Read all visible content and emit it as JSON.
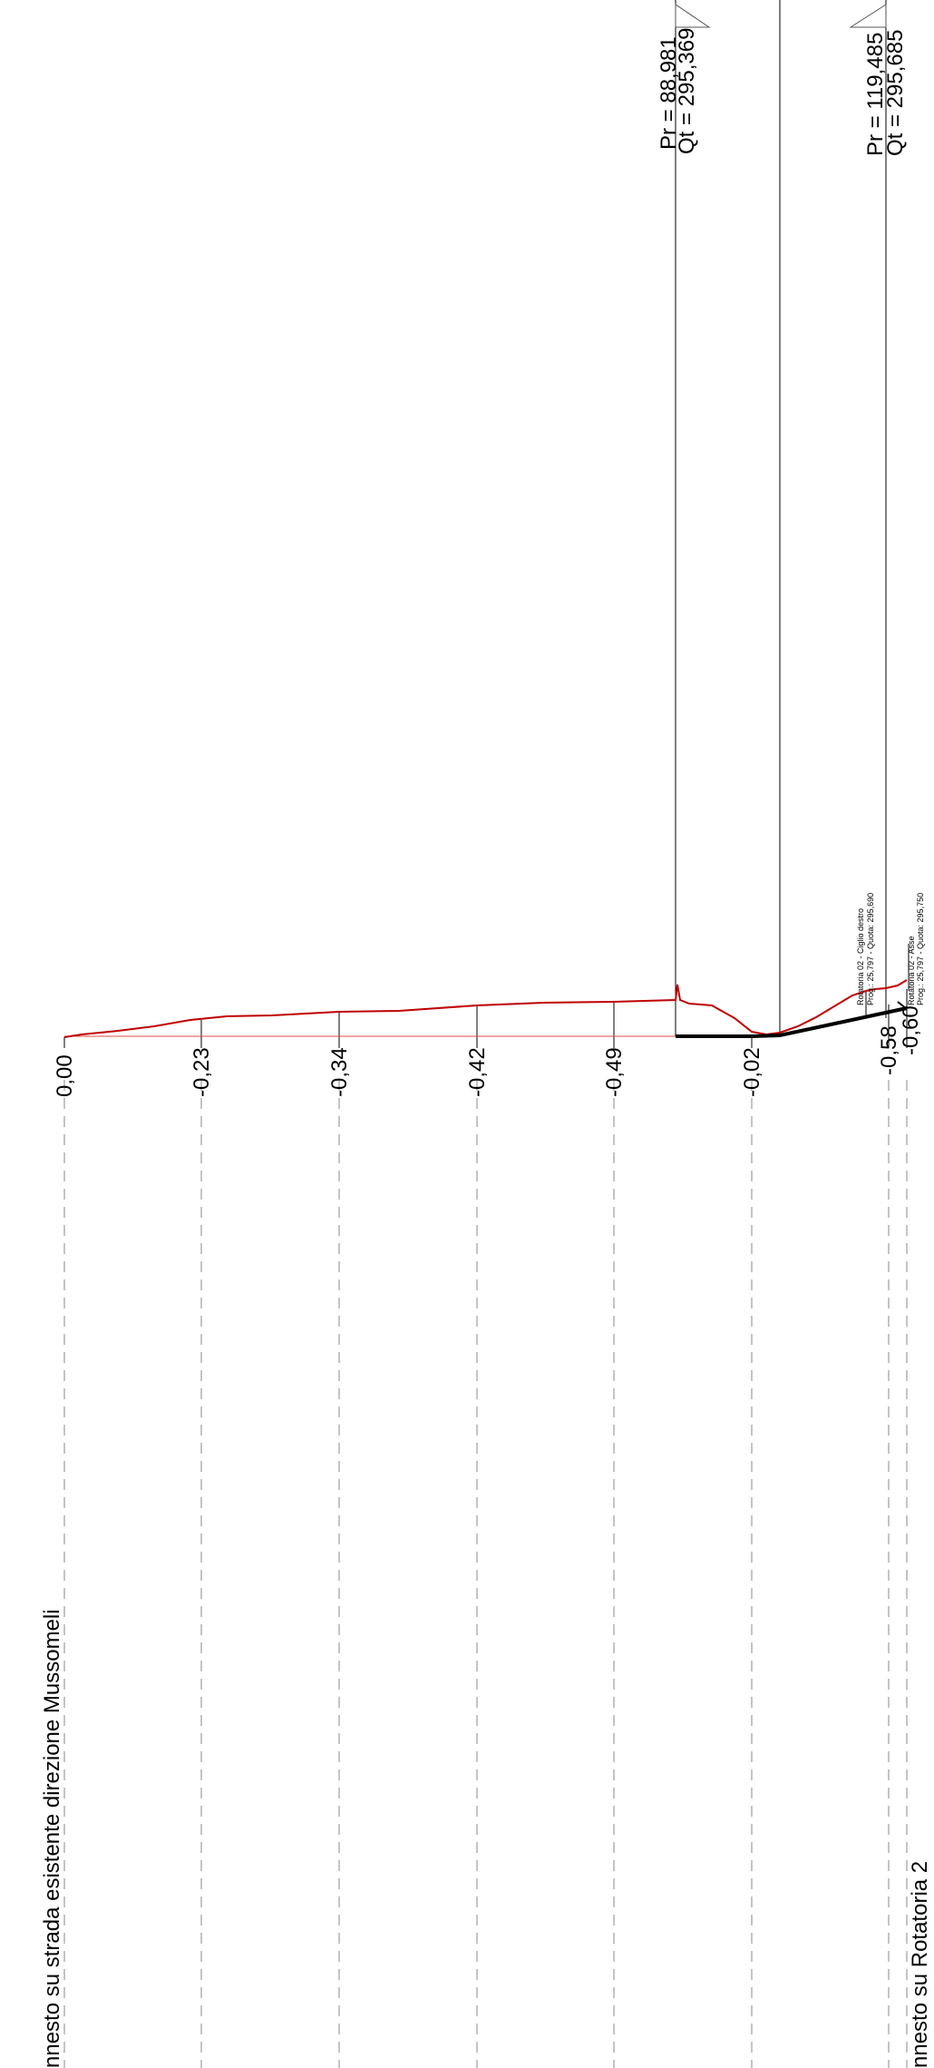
{
  "markers": [
    {
      "pr": "Pr = 88,981",
      "qt": "Qt = 295,369"
    },
    {
      "pr": "Pr = 119,485",
      "qt": "Qt = 295,685"
    }
  ],
  "column_values": [
    "0,00",
    "-0,23",
    "-0,34",
    "-0,42",
    "-0,49",
    "-0,02",
    "-0,58",
    "-0,60"
  ],
  "annotations": {
    "ciglio": [
      "Rotatoria 02 - Ciglio destro",
      "Prog.: 25,797 - Quota: 295,690"
    ],
    "asse": [
      "Rotatoria 02 - Asse",
      "Prog.: 25,797 - Quota: 295,750"
    ]
  },
  "labels": {
    "mussomeli": "nnesto su strada esistente direzione Mussomeli",
    "rotatoria": "nnesto su Rotatoria 2"
  },
  "colors": {
    "terrain": "#c00000",
    "project": "#000000",
    "grid": "#8a8a8a"
  }
}
